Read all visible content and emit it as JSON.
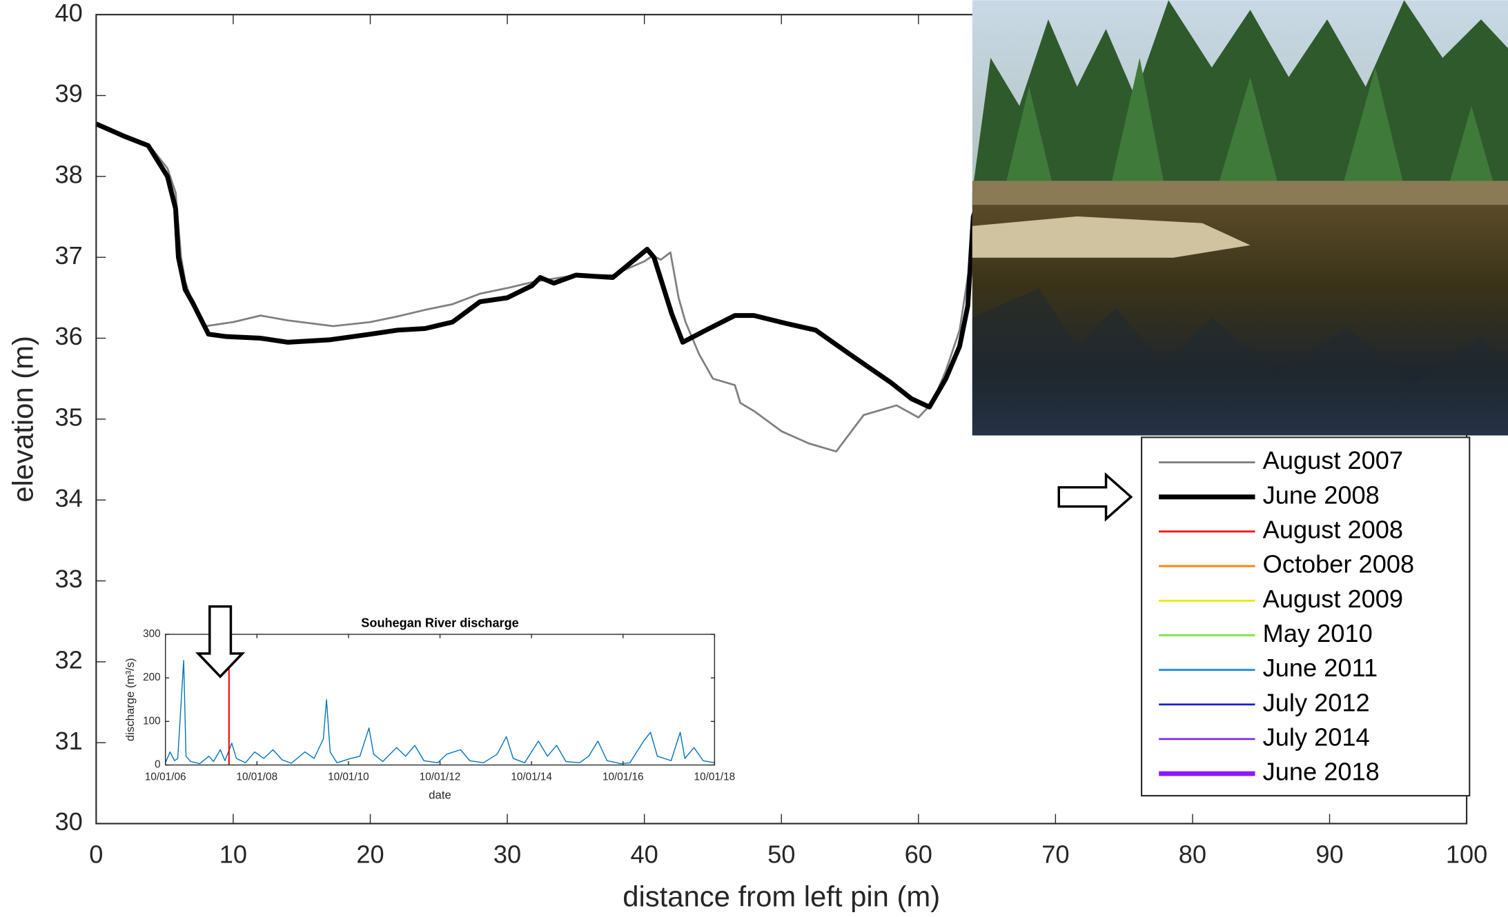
{
  "chart_data": [
    {
      "type": "line",
      "xlabel": "distance from left pin (m)",
      "ylabel": "elevation (m)",
      "xlim": [
        0,
        100
      ],
      "xticks": [
        0,
        10,
        20,
        30,
        40,
        50,
        60,
        70,
        80,
        90,
        100
      ],
      "ylim": [
        30,
        40
      ],
      "yticks": [
        30,
        31,
        32,
        33,
        34,
        35,
        36,
        37,
        38,
        39,
        40
      ],
      "grid": false,
      "legend": "right",
      "series": [
        {
          "name": "August 2007",
          "color": "#808080",
          "width": 2,
          "x": [
            0,
            2,
            3.8,
            5.2,
            5.8,
            6.2,
            6.5,
            7,
            8,
            10,
            12,
            14,
            17.3,
            20,
            22,
            24,
            26,
            28,
            30,
            32,
            35,
            37.7,
            40,
            40.6,
            41.2,
            41.9,
            42.5,
            43,
            44,
            45,
            46.6,
            47,
            48,
            50,
            52,
            54,
            56,
            58.4,
            60,
            61,
            62,
            63,
            64
          ],
          "values": [
            38.65,
            38.5,
            38.4,
            38.1,
            37.8,
            37.0,
            36.7,
            36.45,
            36.15,
            36.2,
            36.28,
            36.22,
            36.15,
            36.2,
            36.27,
            36.35,
            36.42,
            36.55,
            36.62,
            36.7,
            36.78,
            36.78,
            36.95,
            37.02,
            36.97,
            37.06,
            36.5,
            36.2,
            35.8,
            35.5,
            35.42,
            35.2,
            35.1,
            34.85,
            34.7,
            34.6,
            35.05,
            35.17,
            35.02,
            35.2,
            35.6,
            36.1,
            37.2
          ]
        },
        {
          "name": "June 2008",
          "color": "#000000",
          "width": 5,
          "x": [
            0,
            2,
            3.8,
            5.2,
            5.8,
            6,
            6.5,
            7,
            8.2,
            9.5,
            12,
            14,
            17,
            20,
            22,
            24,
            26,
            28,
            30,
            31.8,
            32.4,
            33.4,
            35,
            37.7,
            40.2,
            40.7,
            42,
            42.8,
            44.5,
            46.6,
            48,
            50.4,
            52.5,
            55,
            58,
            59.5,
            60.8,
            62,
            63,
            63.6,
            64,
            64.7
          ],
          "values": [
            38.65,
            38.5,
            38.38,
            38.0,
            37.6,
            37.0,
            36.6,
            36.45,
            36.05,
            36.02,
            36.0,
            35.95,
            35.98,
            36.05,
            36.1,
            36.12,
            36.2,
            36.45,
            36.5,
            36.65,
            36.75,
            36.68,
            36.78,
            36.75,
            37.1,
            37.0,
            36.3,
            35.95,
            36.1,
            36.28,
            36.28,
            36.18,
            36.1,
            35.8,
            35.45,
            35.25,
            35.15,
            35.5,
            35.9,
            36.4,
            37.5,
            37.9
          ]
        },
        {
          "name": "August 2008",
          "color": "#ff0000",
          "width": 2,
          "x": [],
          "values": []
        },
        {
          "name": "October 2008",
          "color": "#ff7f00",
          "width": 2,
          "x": [],
          "values": []
        },
        {
          "name": "August 2009",
          "color": "#e8e800",
          "width": 2,
          "x": [],
          "values": []
        },
        {
          "name": "May 2010",
          "color": "#7fe03f",
          "width": 2,
          "x": [],
          "values": []
        },
        {
          "name": "June 2011",
          "color": "#1f8fef",
          "width": 2,
          "x": [],
          "values": []
        },
        {
          "name": "July 2012",
          "color": "#1a1ad6",
          "width": 2,
          "x": [],
          "values": []
        },
        {
          "name": "July 2014",
          "color": "#7a2be0",
          "width": 2,
          "x": [],
          "values": []
        },
        {
          "name": "June 2018",
          "color": "#8a1aff",
          "width": 5,
          "x": [],
          "values": []
        }
      ]
    },
    {
      "type": "line",
      "title": "Souhegan River discharge",
      "xlabel": "date",
      "ylabel": "discharge (m³/s)",
      "xlim": [
        2006.75,
        2018.75
      ],
      "xticks": [
        {
          "value": 2006.75,
          "label": "10/01/06"
        },
        {
          "value": 2008.75,
          "label": "10/01/08"
        },
        {
          "value": 2010.75,
          "label": "10/01/10"
        },
        {
          "value": 2012.75,
          "label": "10/01/12"
        },
        {
          "value": 2014.75,
          "label": "10/01/14"
        },
        {
          "value": 2016.75,
          "label": "10/01/16"
        },
        {
          "value": 2018.75,
          "label": "10/01/18"
        }
      ],
      "ylim": [
        0,
        300
      ],
      "yticks": [
        0,
        100,
        200,
        300
      ],
      "grid": false,
      "series": [
        {
          "color": "#0072bd",
          "width": 1,
          "x": [
            2006.75,
            2006.85,
            2006.95,
            2007.02,
            2007.15,
            2007.2,
            2007.3,
            2007.5,
            2007.7,
            2007.8,
            2007.95,
            2008.05,
            2008.2,
            2008.3,
            2008.5,
            2008.7,
            2008.9,
            2009.1,
            2009.3,
            2009.5,
            2009.8,
            2010.0,
            2010.2,
            2010.27,
            2010.35,
            2010.5,
            2010.8,
            2011.0,
            2011.2,
            2011.3,
            2011.5,
            2011.8,
            2012.0,
            2012.2,
            2012.4,
            2012.7,
            2012.9,
            2013.2,
            2013.4,
            2013.7,
            2014.0,
            2014.2,
            2014.35,
            2014.6,
            2014.9,
            2015.1,
            2015.3,
            2015.5,
            2015.8,
            2016.0,
            2016.2,
            2016.4,
            2016.7,
            2016.9,
            2017.2,
            2017.35,
            2017.5,
            2017.8,
            2018.0,
            2018.1,
            2018.3,
            2018.5,
            2018.75
          ],
          "values": [
            5,
            30,
            10,
            15,
            240,
            20,
            8,
            3,
            20,
            8,
            35,
            10,
            50,
            15,
            5,
            30,
            15,
            35,
            12,
            4,
            30,
            15,
            60,
            150,
            30,
            5,
            15,
            20,
            85,
            25,
            8,
            40,
            20,
            45,
            10,
            5,
            25,
            35,
            10,
            5,
            25,
            65,
            15,
            5,
            55,
            20,
            45,
            8,
            5,
            20,
            55,
            10,
            3,
            5,
            55,
            75,
            20,
            10,
            75,
            15,
            40,
            10,
            5
          ]
        },
        {
          "color": "#ff0000",
          "width": 1.5,
          "x": [
            2008.14,
            2008.14
          ],
          "values": [
            0,
            240
          ]
        }
      ]
    }
  ]
}
